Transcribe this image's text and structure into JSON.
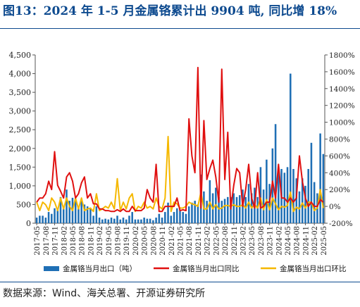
{
  "title": "图13：2024 年 1-5 月金属铬累计出 9904 吨, 同比增 18%",
  "source": "数据来源：Wind、海关总署、开源证券研究所",
  "colors": {
    "bar": "#1f6fb5",
    "yoy": "#e01010",
    "mom": "#f5b800",
    "title": "#0d4a8f"
  },
  "chart_data": {
    "type": "bar",
    "months": [
      "2017-05",
      "2017-06",
      "2017-07",
      "2017-08",
      "2017-09",
      "2017-10",
      "2017-11",
      "2017-12",
      "2018-01",
      "2018-02",
      "2018-03",
      "2018-04",
      "2018-05",
      "2018-06",
      "2018-07",
      "2018-08",
      "2018-09",
      "2018-10",
      "2018-11",
      "2018-12",
      "2019-01",
      "2019-02",
      "2019-03",
      "2019-04",
      "2019-05",
      "2019-06",
      "2019-07",
      "2019-08",
      "2019-09",
      "2019-10",
      "2019-11",
      "2019-12",
      "2020-01",
      "2020-02",
      "2020-03",
      "2020-04",
      "2020-05",
      "2020-06",
      "2020-07",
      "2020-08",
      "2020-09",
      "2020-10",
      "2020-11",
      "2020-12",
      "2021-01",
      "2021-02",
      "2021-03",
      "2021-04",
      "2021-05",
      "2021-06",
      "2021-07",
      "2021-08",
      "2021-09",
      "2021-10",
      "2021-11",
      "2021-12",
      "2022-01",
      "2022-02",
      "2022-03",
      "2022-04",
      "2022-05",
      "2022-06",
      "2022-07",
      "2022-08",
      "2022-09",
      "2022-10",
      "2022-11",
      "2022-12",
      "2023-01",
      "2023-02",
      "2023-03",
      "2023-04",
      "2023-05",
      "2023-06",
      "2023-07",
      "2023-08",
      "2023-09",
      "2023-10",
      "2023-11",
      "2023-12",
      "2024-01",
      "2024-02",
      "2024-03",
      "2024-04",
      "2024-05",
      "2024-06",
      "2024-07",
      "2024-08",
      "2024-09",
      "2024-10",
      "2024-11",
      "2024-12",
      "2025-01",
      "2025-02",
      "2025-03",
      "2025-04",
      "2025-05"
    ],
    "x_tick_labels": [
      "2017-05",
      "2017-08",
      "2017-11",
      "2018-02",
      "2018-05",
      "2018-08",
      "2018-11",
      "2019-02",
      "2019-05",
      "2019-08",
      "2019-11",
      "2020-02",
      "2020-05",
      "2020-08",
      "2020-11",
      "2021-02",
      "2021-05",
      "2021-08",
      "2021-11",
      "2022-02",
      "2022-05",
      "2022-08",
      "2022-11",
      "2023-02",
      "2023-05",
      "2023-08",
      "2023-11",
      "2024-02",
      "2024-05",
      "2024-08",
      "2024-11",
      "2025-02",
      "2025-05"
    ],
    "left_axis": {
      "min": 0,
      "max": 4500,
      "step": 500,
      "tick_labels": [
        "0",
        "500",
        "1,000",
        "1,500",
        "2,000",
        "2,500",
        "3,000",
        "3,500",
        "4,000",
        "4,500"
      ]
    },
    "right_axis": {
      "min": -200,
      "max": 1800,
      "step": 200,
      "tick_labels": [
        "-200%",
        "0%",
        "200%",
        "400%",
        "600%",
        "800%",
        "1000%",
        "1200%",
        "1400%",
        "1600%",
        "1800%"
      ]
    },
    "series": [
      {
        "name": "金属铬当月出口（吨）",
        "type": "bar",
        "axis": "left",
        "values": [
          150,
          200,
          200,
          150,
          300,
          250,
          400,
          350,
          700,
          450,
          900,
          600,
          680,
          650,
          400,
          600,
          500,
          450,
          400,
          200,
          450,
          150,
          100,
          120,
          100,
          150,
          120,
          200,
          100,
          150,
          100,
          200,
          300,
          100,
          100,
          100,
          150,
          120,
          120,
          80,
          150,
          250,
          150,
          300,
          550,
          200,
          300,
          400,
          350,
          300,
          250,
          450,
          550,
          600,
          500,
          1300,
          850,
          600,
          1150,
          800,
          950,
          700,
          600,
          650,
          700,
          700,
          800,
          700,
          750,
          900,
          700,
          1050,
          800,
          950,
          700,
          1500,
          900,
          1700,
          1050,
          2000,
          2650,
          1500,
          1450,
          1350,
          1500,
          4000,
          1450,
          1200,
          850,
          1200,
          1000,
          1450,
          2150,
          1100,
          800,
          2400,
          1850
        ]
      },
      {
        "name": "金属铬当月出口同比",
        "type": "line",
        "axis": "right",
        "values": [
          50,
          100,
          100,
          150,
          300,
          200,
          650,
          250,
          180,
          100,
          350,
          400,
          300,
          100,
          150,
          280,
          350,
          100,
          150,
          30,
          30,
          -30,
          -30,
          -50,
          -50,
          -60,
          -60,
          -40,
          -60,
          -30,
          -60,
          -60,
          0,
          -50,
          -50,
          -50,
          -20,
          200,
          100,
          50,
          500,
          -60,
          -60,
          0,
          0,
          0,
          0,
          100,
          -50,
          -40,
          -50,
          1040,
          600,
          400,
          1650,
          -20,
          1020,
          320,
          450,
          550,
          350,
          50,
          1630,
          320,
          880,
          -30,
          250,
          450,
          400,
          0,
          200,
          500,
          100,
          -20,
          400,
          -20,
          0,
          50,
          50,
          300,
          100,
          500,
          100,
          100,
          50,
          100,
          50,
          100,
          600,
          300,
          100,
          0,
          50,
          0,
          0,
          80,
          50
        ]
      },
      {
        "name": "金属铬当月出口环比",
        "type": "line",
        "axis": "right",
        "values": [
          50,
          -50,
          50,
          20,
          -50,
          100,
          50,
          -50,
          100,
          -30,
          100,
          0,
          -50,
          100,
          -30,
          100,
          -50,
          -30,
          -20,
          -60,
          150,
          -50,
          -30,
          0,
          -20,
          50,
          -30,
          330,
          -50,
          50,
          -30,
          100,
          150,
          -60,
          0,
          -20,
          50,
          -20,
          0,
          -30,
          100,
          0,
          -30,
          100,
          830,
          -60,
          50,
          30,
          -20,
          -20,
          0,
          50,
          30,
          20,
          0,
          170,
          -30,
          -30,
          50,
          -30,
          20,
          -30,
          -20,
          10,
          10,
          0,
          20,
          0,
          0,
          20,
          -20,
          50,
          -20,
          20,
          -20,
          100,
          -40,
          80,
          -40,
          100,
          30,
          -40,
          0,
          -10,
          10,
          170,
          -60,
          -10,
          -30,
          40,
          -20,
          50,
          50,
          -50,
          -20,
          200,
          -20
        ]
      }
    ]
  }
}
